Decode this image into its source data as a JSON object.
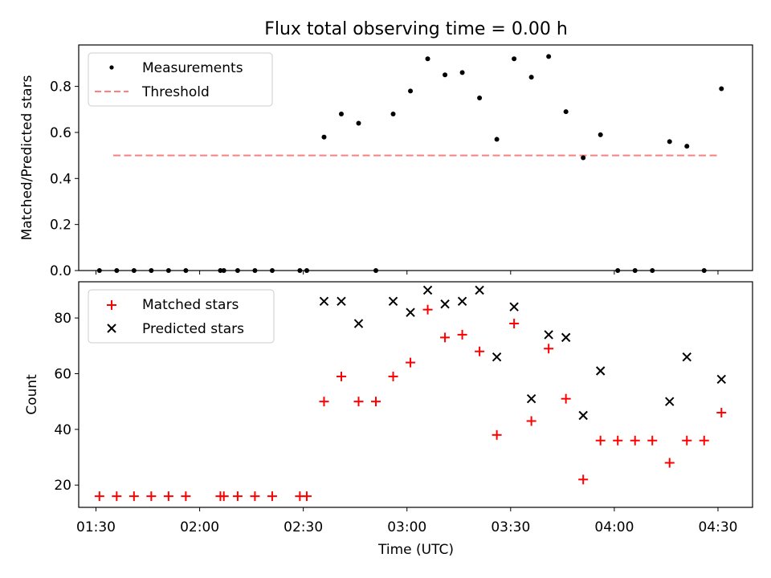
{
  "chart_data": [
    {
      "type": "scatter",
      "title": "Flux total observing time = 0.00 h",
      "xlabel": "",
      "ylabel": "Matched/Predicted stars",
      "xlim": [
        "01:25",
        "04:40"
      ],
      "ylim": [
        0,
        0.98
      ],
      "yticks": [
        "0.0",
        "0.2",
        "0.4",
        "0.6",
        "0.8"
      ],
      "legend_position": "upper-left",
      "series": [
        {
          "name": "Measurements",
          "marker": "dot",
          "color": "#000000",
          "x": [
            "01:31",
            "01:36",
            "01:41",
            "01:46",
            "01:51",
            "01:56",
            "02:06",
            "02:07",
            "02:11",
            "02:16",
            "02:21",
            "02:29",
            "02:31",
            "02:36",
            "02:41",
            "02:46",
            "02:51",
            "02:56",
            "03:01",
            "03:06",
            "03:11",
            "03:16",
            "03:21",
            "03:26",
            "03:31",
            "03:36",
            "03:41",
            "03:46",
            "03:51",
            "03:56",
            "04:01",
            "04:06",
            "04:11",
            "04:16",
            "04:21",
            "04:26",
            "04:31"
          ],
          "y": [
            0,
            0,
            0,
            0,
            0,
            0,
            0,
            0,
            0,
            0,
            0,
            0,
            0,
            0.58,
            0.68,
            0.64,
            0,
            0.68,
            0.78,
            0.92,
            0.85,
            0.86,
            0.75,
            0.57,
            0.92,
            0.84,
            0.93,
            0.69,
            0.49,
            0.59,
            0,
            0,
            0,
            0.56,
            0.54,
            0,
            0.79
          ]
        },
        {
          "name": "Threshold",
          "marker": "dashed-line",
          "color": "#ff7f7f",
          "x": [
            "01:35",
            "04:30"
          ],
          "y": [
            0.5,
            0.5
          ]
        }
      ]
    },
    {
      "type": "scatter",
      "title": "",
      "xlabel": "Time (UTC)",
      "ylabel": "Count",
      "xlim": [
        "01:25",
        "04:40"
      ],
      "ylim": [
        12,
        93
      ],
      "xticks": [
        "01:30",
        "02:00",
        "02:30",
        "03:00",
        "03:30",
        "04:00",
        "04:30"
      ],
      "yticks": [
        "20",
        "40",
        "60",
        "80"
      ],
      "legend_position": "upper-left",
      "series": [
        {
          "name": "Matched stars",
          "marker": "plus",
          "color": "#ff0000",
          "x": [
            "01:31",
            "01:36",
            "01:41",
            "01:46",
            "01:51",
            "01:56",
            "02:06",
            "02:07",
            "02:11",
            "02:16",
            "02:21",
            "02:29",
            "02:31",
            "02:36",
            "02:41",
            "02:46",
            "02:51",
            "02:56",
            "03:01",
            "03:06",
            "03:11",
            "03:16",
            "03:21",
            "03:26",
            "03:31",
            "03:36",
            "03:41",
            "03:46",
            "03:51",
            "03:56",
            "04:01",
            "04:06",
            "04:11",
            "04:16",
            "04:21",
            "04:26",
            "04:31"
          ],
          "y": [
            16,
            16,
            16,
            16,
            16,
            16,
            16,
            16,
            16,
            16,
            16,
            16,
            16,
            50,
            59,
            50,
            50,
            59,
            64,
            83,
            73,
            74,
            68,
            38,
            78,
            43,
            69,
            51,
            22,
            36,
            36,
            36,
            36,
            28,
            36,
            36,
            46
          ]
        },
        {
          "name": "Predicted stars",
          "marker": "x",
          "color": "#000000",
          "x": [
            "02:36",
            "02:41",
            "02:46",
            "02:56",
            "03:01",
            "03:06",
            "03:11",
            "03:16",
            "03:21",
            "03:26",
            "03:31",
            "03:36",
            "03:41",
            "03:46",
            "03:51",
            "03:56",
            "04:16",
            "04:21",
            "04:31"
          ],
          "y": [
            86,
            86,
            78,
            86,
            82,
            90,
            85,
            86,
            90,
            66,
            84,
            51,
            74,
            73,
            45,
            61,
            50,
            66,
            58
          ]
        }
      ]
    }
  ]
}
